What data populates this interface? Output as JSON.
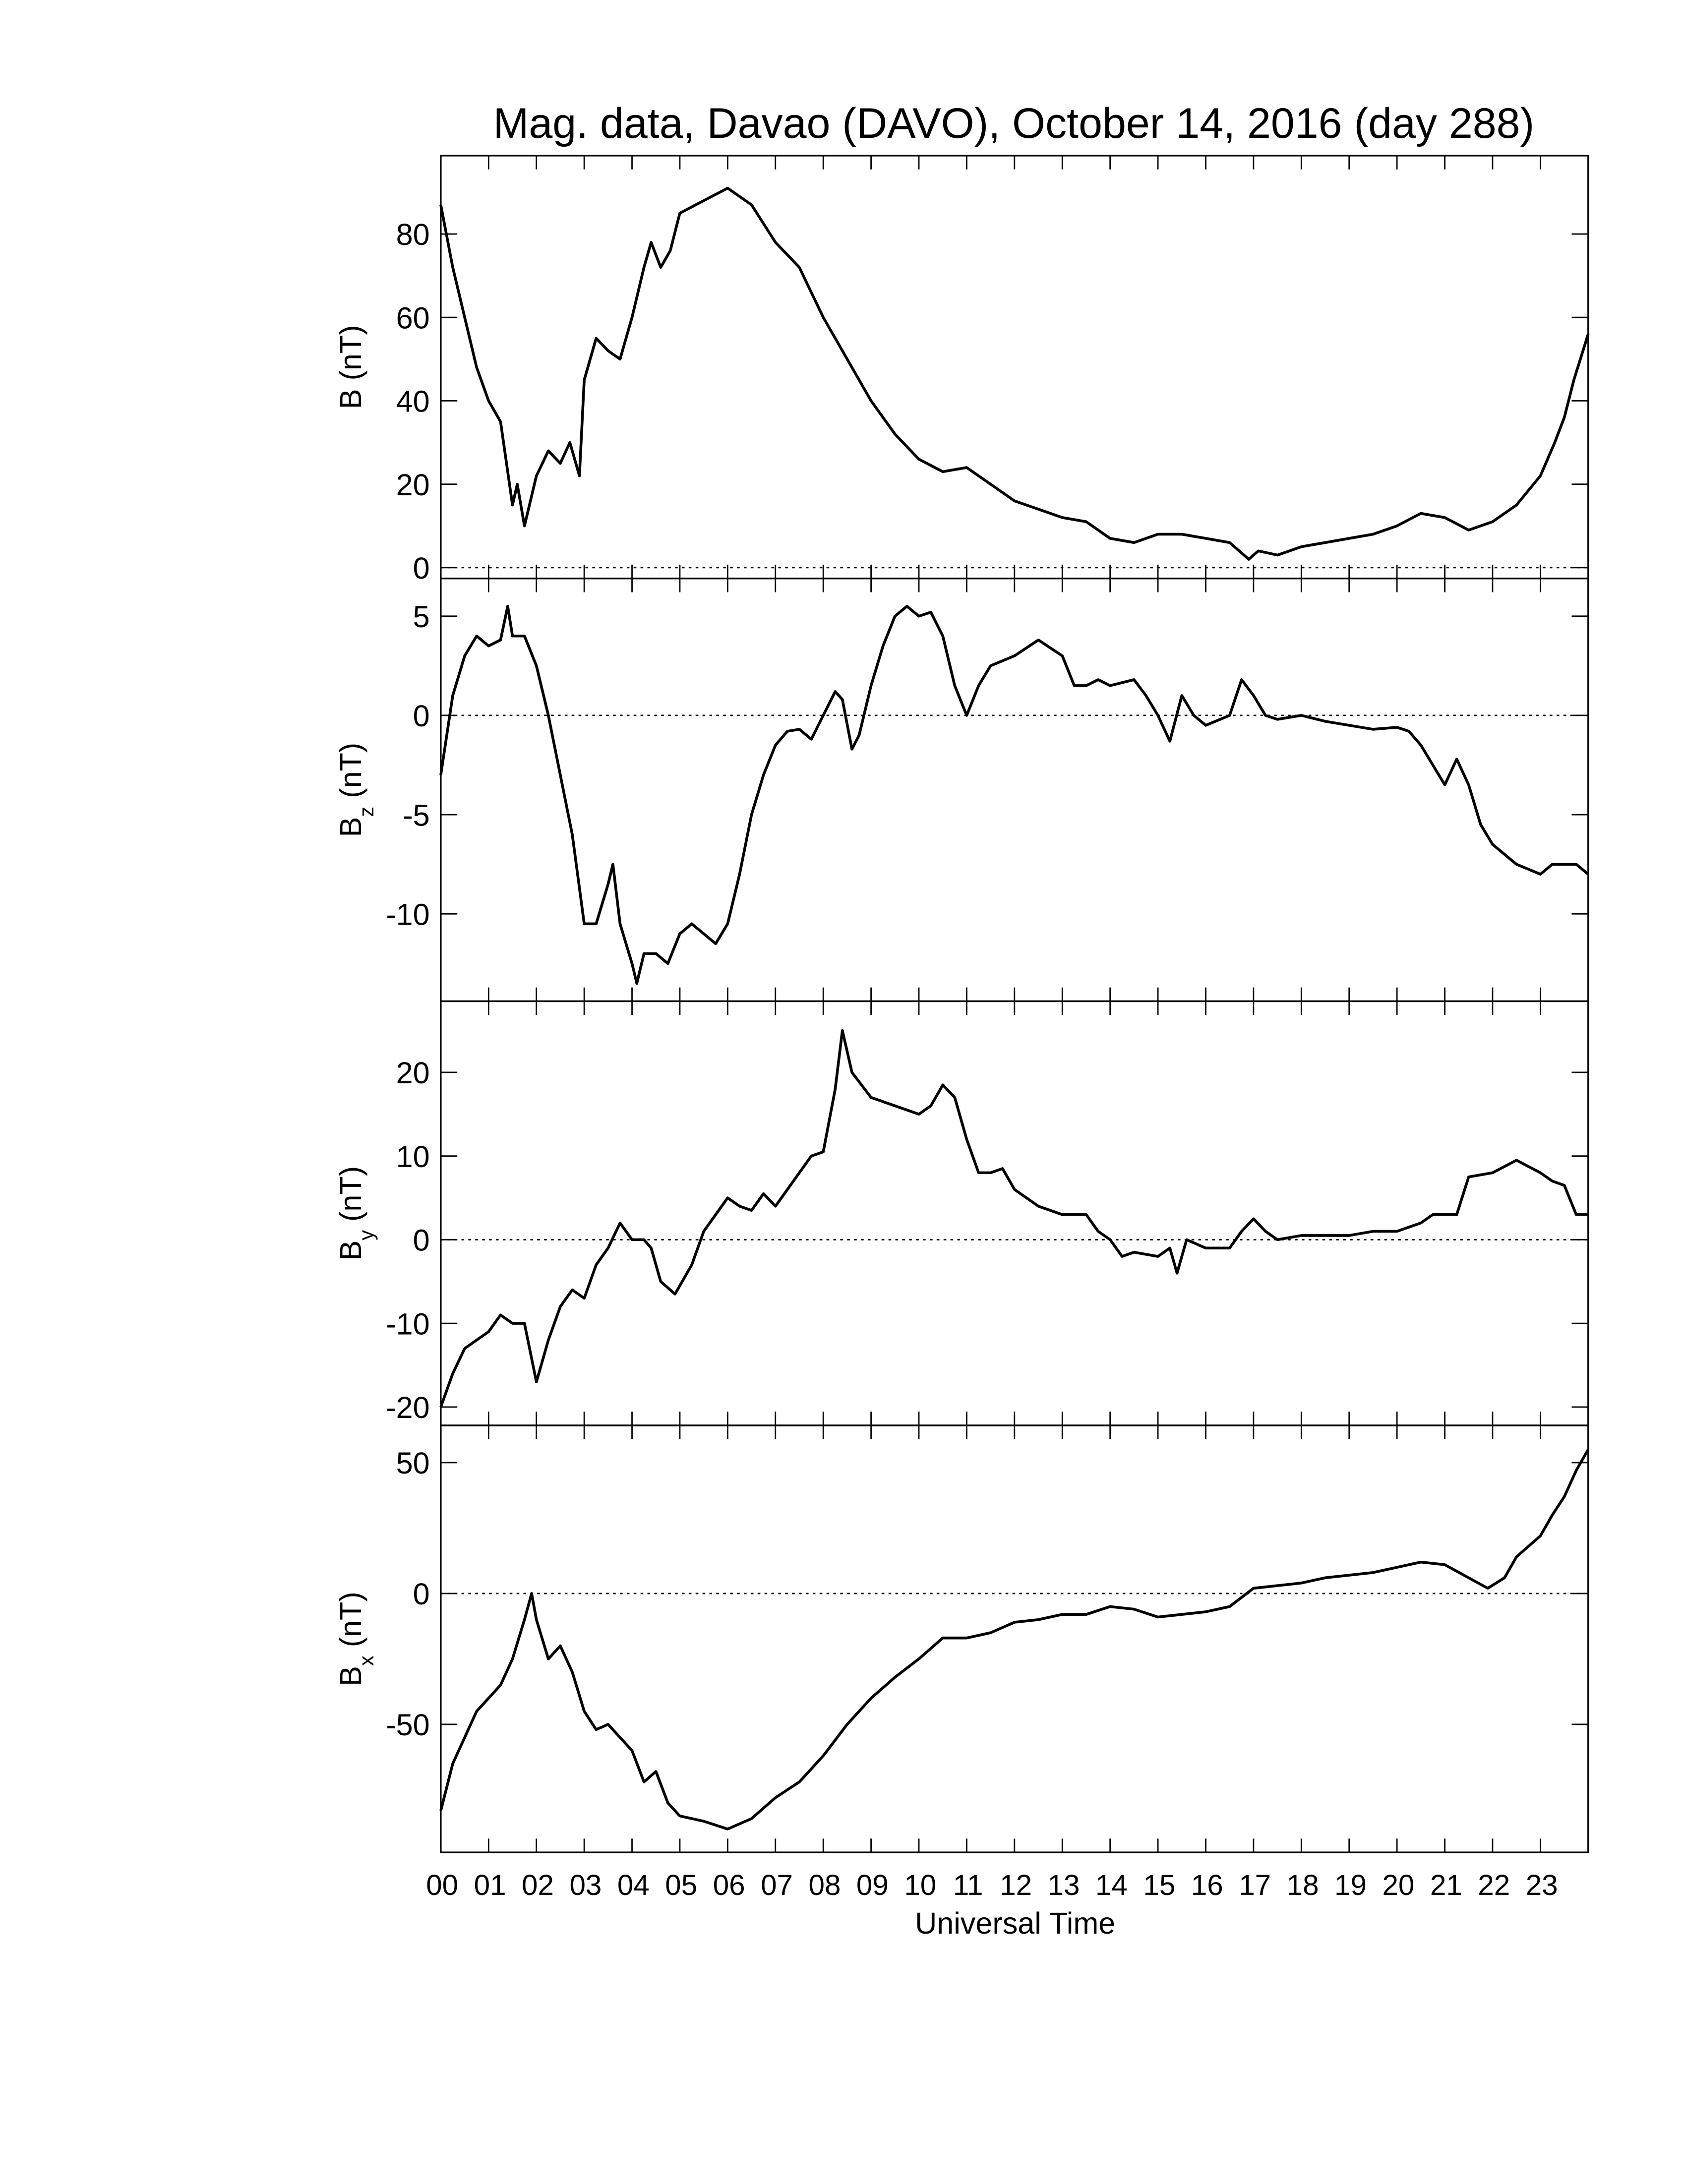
{
  "chart_data": [
    {
      "type": "line",
      "title": "Mag. data, Davao (DAVO), October 14, 2016 (day 288)",
      "ylabel": "B",
      "ylabel_unit": "(nT)",
      "color": "#000000",
      "zero_line": true,
      "xlim": [
        0,
        24
      ],
      "ylim": [
        -2.6,
        98.8
      ],
      "yticks": [
        0,
        20,
        40,
        60,
        80
      ],
      "x": [
        0,
        0.25,
        0.5,
        0.75,
        1,
        1.25,
        1.5,
        1.6,
        1.75,
        2,
        2.25,
        2.5,
        2.7,
        2.9,
        3,
        3.25,
        3.5,
        3.75,
        4,
        4.25,
        4.4,
        4.6,
        4.8,
        5,
        5.5,
        6,
        6.5,
        7,
        7.5,
        8,
        8.5,
        9,
        9.5,
        10,
        10.5,
        11,
        11.5,
        12,
        12.5,
        13,
        13.5,
        14,
        14.5,
        15,
        15.5,
        16,
        16.5,
        16.9,
        17.1,
        17.5,
        18,
        18.5,
        19,
        19.5,
        20,
        20.5,
        21,
        21.5,
        22,
        22.5,
        23,
        23.3,
        23.5,
        23.7,
        24
      ],
      "values": [
        87,
        72,
        60,
        48,
        40,
        35,
        15,
        20,
        10,
        22,
        28,
        25,
        30,
        22,
        45,
        55,
        52,
        50,
        60,
        72,
        78,
        72,
        76,
        85,
        88,
        91,
        87,
        78,
        72,
        60,
        50,
        40,
        32,
        26,
        23,
        24,
        20,
        16,
        14,
        12,
        11,
        7,
        6,
        8,
        8,
        7,
        6,
        2,
        4,
        3,
        5,
        6,
        7,
        8,
        10,
        13,
        12,
        9,
        11,
        15,
        22,
        30,
        36,
        45,
        56
      ]
    },
    {
      "type": "line",
      "ylabel": "B",
      "ylabel_sub": "z",
      "ylabel_unit": "(nT)",
      "color": "#000000",
      "zero_line": true,
      "xlim": [
        0,
        24
      ],
      "ylim": [
        -14.4,
        6.9
      ],
      "yticks": [
        -10,
        -5,
        0,
        5
      ],
      "x": [
        0,
        0.25,
        0.5,
        0.75,
        1,
        1.25,
        1.4,
        1.5,
        1.75,
        2,
        2.25,
        2.5,
        2.75,
        3,
        3.25,
        3.5,
        3.6,
        3.75,
        4,
        4.1,
        4.25,
        4.5,
        4.75,
        5,
        5.25,
        5.5,
        5.75,
        6,
        6.25,
        6.5,
        6.75,
        7,
        7.25,
        7.5,
        7.75,
        8,
        8.25,
        8.4,
        8.6,
        8.75,
        9,
        9.25,
        9.5,
        9.75,
        10,
        10.25,
        10.5,
        10.75,
        11,
        11.25,
        11.5,
        12,
        12.5,
        13,
        13.25,
        13.5,
        13.75,
        14,
        14.5,
        14.75,
        15,
        15.25,
        15.5,
        15.75,
        16,
        16.5,
        16.75,
        17,
        17.25,
        17.5,
        18,
        18.5,
        19,
        19.5,
        20,
        20.25,
        20.5,
        20.75,
        21,
        21.25,
        21.5,
        21.75,
        22,
        22.5,
        23,
        23.25,
        23.5,
        23.75,
        24
      ],
      "values": [
        -3,
        1,
        3,
        4,
        3.5,
        3.8,
        5.5,
        4,
        4,
        2.5,
        0,
        -3,
        -6,
        -10.5,
        -10.5,
        -8.5,
        -7.5,
        -10.5,
        -12.5,
        -13.5,
        -12,
        -12,
        -12.5,
        -11,
        -10.5,
        -11,
        -11.5,
        -10.5,
        -8,
        -5,
        -3,
        -1.5,
        -0.8,
        -0.7,
        -1.2,
        0,
        1.2,
        0.8,
        -1.7,
        -1,
        1.5,
        3.5,
        5,
        5.5,
        5,
        5.2,
        4,
        1.5,
        0,
        1.5,
        2.5,
        3,
        3.8,
        3,
        1.5,
        1.5,
        1.8,
        1.5,
        1.8,
        1,
        0,
        -1.3,
        1,
        0,
        -0.5,
        0,
        1.8,
        1,
        0,
        -0.2,
        0,
        -0.3,
        -0.5,
        -0.7,
        -0.6,
        -0.8,
        -1.5,
        -2.5,
        -3.5,
        -2.2,
        -3.5,
        -5.5,
        -6.5,
        -7.5,
        -8,
        -7.5,
        -7.5,
        -7.5,
        -8
      ]
    },
    {
      "type": "line",
      "ylabel": "B",
      "ylabel_sub": "y",
      "ylabel_unit": "(nT)",
      "color": "#000000",
      "zero_line": true,
      "xlim": [
        0,
        24
      ],
      "ylim": [
        -22.2,
        28.5
      ],
      "yticks": [
        -20,
        -10,
        0,
        10,
        20
      ],
      "x": [
        0,
        0.25,
        0.5,
        0.75,
        1,
        1.25,
        1.5,
        1.75,
        2,
        2.25,
        2.5,
        2.75,
        3,
        3.25,
        3.5,
        3.75,
        4,
        4.25,
        4.4,
        4.6,
        4.9,
        5.25,
        5.5,
        5.75,
        6,
        6.25,
        6.5,
        6.75,
        7,
        7.25,
        7.5,
        7.75,
        8,
        8.25,
        8.4,
        8.6,
        9,
        9.5,
        10,
        10.25,
        10.5,
        10.75,
        11,
        11.25,
        11.5,
        11.75,
        12,
        12.5,
        13,
        13.5,
        13.75,
        14,
        14.25,
        14.5,
        15,
        15.25,
        15.4,
        15.6,
        16,
        16.5,
        16.75,
        17,
        17.25,
        17.5,
        18,
        18.5,
        19,
        19.5,
        20,
        20.5,
        20.75,
        21,
        21.25,
        21.5,
        22,
        22.5,
        23,
        23.25,
        23.5,
        23.75,
        24
      ],
      "values": [
        -20,
        -16,
        -13,
        -12,
        -11,
        -9,
        -10,
        -10,
        -17,
        -12,
        -8,
        -6,
        -7,
        -3,
        -1,
        2,
        0,
        0,
        -1,
        -5,
        -6.5,
        -3,
        1,
        3,
        5,
        4,
        3.5,
        5.5,
        4,
        6,
        8,
        10,
        10.5,
        18,
        25,
        20,
        17,
        16,
        15,
        16,
        18.5,
        17,
        12,
        8,
        8,
        8.5,
        6,
        4,
        3,
        3,
        1,
        0,
        -2,
        -1.5,
        -2,
        -1,
        -4,
        0,
        -1,
        -1,
        1,
        2.5,
        1,
        0,
        0.5,
        0.5,
        0.5,
        1,
        1,
        2,
        3,
        3,
        3,
        7.5,
        8,
        9.5,
        8,
        7,
        6.5,
        3,
        3
      ]
    },
    {
      "type": "line",
      "ylabel": "B",
      "ylabel_sub": "x",
      "ylabel_unit": "(nT)",
      "xlabel": "Universal Time",
      "color": "#000000",
      "zero_line": true,
      "xlim": [
        0,
        24
      ],
      "ylim": [
        -98.9,
        64.2
      ],
      "yticks": [
        -50,
        0,
        50
      ],
      "xticks": [
        {
          "value": 0,
          "label": "00"
        },
        {
          "value": 1,
          "label": "01"
        },
        {
          "value": 2,
          "label": "02"
        },
        {
          "value": 3,
          "label": "03"
        },
        {
          "value": 4,
          "label": "04"
        },
        {
          "value": 5,
          "label": "05"
        },
        {
          "value": 6,
          "label": "06"
        },
        {
          "value": 7,
          "label": "07"
        },
        {
          "value": 8,
          "label": "08"
        },
        {
          "value": 9,
          "label": "09"
        },
        10,
        11,
        12,
        13,
        14,
        15,
        16,
        17,
        18,
        19,
        20,
        21,
        22,
        23
      ],
      "x": [
        0,
        0.25,
        0.5,
        0.75,
        1,
        1.25,
        1.5,
        1.75,
        1.9,
        2,
        2.25,
        2.5,
        2.75,
        3,
        3.25,
        3.5,
        3.75,
        4,
        4.25,
        4.5,
        4.75,
        5,
        5.5,
        6,
        6.5,
        7,
        7.5,
        8,
        8.5,
        9,
        9.5,
        10,
        10.5,
        11,
        11.5,
        12,
        12.5,
        13,
        13.5,
        14,
        14.5,
        15,
        15.5,
        16,
        16.5,
        17,
        17.5,
        18,
        18.5,
        19,
        19.5,
        20,
        20.5,
        21,
        21.5,
        21.9,
        22.25,
        22.5,
        23,
        23.25,
        23.5,
        23.75,
        24
      ],
      "values": [
        -83,
        -65,
        -55,
        -45,
        -40,
        -35,
        -25,
        -10,
        0,
        -10,
        -25,
        -20,
        -30,
        -45,
        -52,
        -50,
        -55,
        -60,
        -72,
        -68,
        -80,
        -85,
        -87,
        -90,
        -86,
        -78,
        -72,
        -62,
        -50,
        -40,
        -32,
        -25,
        -17,
        -17,
        -15,
        -11,
        -10,
        -8,
        -8,
        -5,
        -6,
        -9,
        -8,
        -7,
        -5,
        2,
        3,
        4,
        6,
        7,
        8,
        10,
        12,
        11,
        6,
        2,
        6,
        14,
        22,
        30,
        37,
        47,
        55
      ]
    }
  ]
}
